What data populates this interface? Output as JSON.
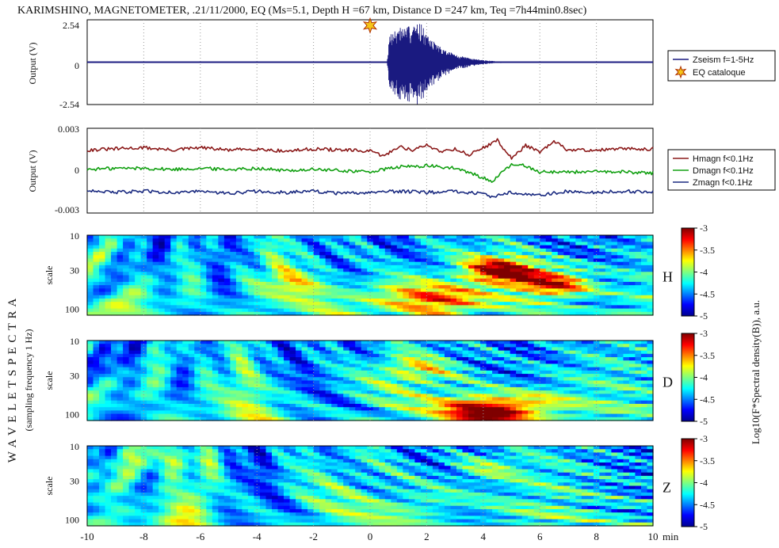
{
  "chart_data": [
    {
      "type": "line",
      "title": "KARIMSHINO, MAGNETOMETER, .21/11/2000,  EQ (Ms=5.1, Depth H =67 km, Distance D =247 km, Teq =7h44min0.8sec)",
      "ylabel": "Output (V)",
      "xlim": [
        -10,
        10
      ],
      "ylim": [
        -2.54,
        2.54
      ],
      "yticks": [
        "2.54",
        "0",
        "-2.54"
      ],
      "series": [
        {
          "name": "Zseism f=1-5Hz",
          "color": "#1a1a80",
          "x": [
            -10,
            0.6,
            0.7,
            1.0,
            1.5,
            1.8,
            2.0,
            2.5,
            3.0,
            3.5,
            4.0,
            4.5,
            10
          ],
          "amplitude": [
            0,
            0,
            1.8,
            2.1,
            2.2,
            2.4,
            1.6,
            0.9,
            0.45,
            0.25,
            0.12,
            0.05,
            0
          ]
        }
      ],
      "markers": [
        {
          "name": "EQ cataloque",
          "x": 0,
          "y": 2.2,
          "color": "#f5c518"
        }
      ],
      "legend": "right"
    },
    {
      "type": "line",
      "ylabel": "Output (V)",
      "xlim": [
        -10,
        10
      ],
      "ylim": [
        -0.0035,
        0.0035
      ],
      "yticks": [
        "0.003",
        "0",
        "-0.003"
      ],
      "series": [
        {
          "name": "Hmagn f<0.1Hz",
          "color": "#8b1a1a",
          "baseline": 0.0017,
          "x": [
            -10,
            -9,
            -8,
            -7,
            -6,
            -5,
            -4,
            -3,
            -2,
            -1,
            0,
            0.5,
            1,
            1.5,
            2,
            2.5,
            3,
            3.5,
            4,
            4.5,
            5,
            5.5,
            6,
            6.5,
            7,
            8,
            9,
            10
          ],
          "y": [
            0.0017,
            0.0018,
            0.0019,
            0.0017,
            0.0019,
            0.0017,
            0.0018,
            0.0016,
            0.0018,
            0.0017,
            0.0016,
            0.0012,
            0.002,
            0.0017,
            0.0021,
            0.0016,
            0.0018,
            0.0013,
            0.0019,
            0.0025,
            0.001,
            0.0021,
            0.0015,
            0.0024,
            0.0017,
            0.0017,
            0.0018,
            0.0018
          ]
        },
        {
          "name": "Dmagn f<0.1Hz",
          "color": "#12a012",
          "baseline": 0.0,
          "x": [
            -10,
            -9,
            -8,
            -7,
            -6,
            -5,
            -4,
            -3,
            -2,
            -1,
            0,
            1,
            2,
            3,
            3.8,
            4.3,
            5,
            5.5,
            6,
            7,
            8,
            9,
            10
          ],
          "y": [
            0.0001,
            0.0002,
            0.0002,
            0.0001,
            0.0002,
            0.0001,
            0.0002,
            0.0,
            0.0001,
            0.0,
            -0.0001,
            0.0003,
            0.0004,
            0.0002,
            -0.0004,
            -0.0009,
            0.0005,
            0.0004,
            -0.0001,
            -0.0001,
            -0.0001,
            -0.0001,
            -0.0002
          ]
        },
        {
          "name": "Zmagn f<0.1Hz",
          "color": "#1a2a80",
          "baseline": -0.0018,
          "x": [
            -10,
            -9,
            -8,
            -7,
            -6,
            -5,
            -4,
            -3,
            -2,
            -1,
            0,
            1,
            2,
            3,
            4,
            4.3,
            5,
            6,
            7,
            8,
            9,
            10
          ],
          "y": [
            -0.0016,
            -0.0018,
            -0.0017,
            -0.0018,
            -0.0017,
            -0.0019,
            -0.0017,
            -0.0018,
            -0.0017,
            -0.0019,
            -0.0018,
            -0.0017,
            -0.0018,
            -0.0017,
            -0.0019,
            -0.0022,
            -0.0018,
            -0.002,
            -0.0017,
            -0.0018,
            -0.0017,
            -0.0018
          ]
        }
      ],
      "legend": "right"
    },
    {
      "type": "heatmap",
      "panel": "H",
      "ylabel": "scale",
      "xlim": [
        -10,
        10
      ],
      "yticks": [
        "10",
        "30",
        "100"
      ],
      "colorbar": {
        "range": [
          -5,
          -3
        ],
        "ticks": [
          "-3",
          "-3.5",
          "-4",
          "-4.5",
          "-5"
        ]
      },
      "hotspots": [
        {
          "t": 4.7,
          "scale": 30,
          "level": -3.1
        },
        {
          "t": 6.5,
          "scale": 45,
          "level": -3.3
        },
        {
          "t": 2.5,
          "scale": 80,
          "level": -3.8
        },
        {
          "t": 1.5,
          "scale": 75,
          "level": -3.9
        },
        {
          "t": 0.5,
          "scale": 55,
          "level": -4.0
        },
        {
          "t": -3,
          "scale": 45,
          "level": -4.1
        }
      ]
    },
    {
      "type": "heatmap",
      "panel": "D",
      "ylabel": "scale",
      "xlim": [
        -10,
        10
      ],
      "yticks": [
        "10",
        "30",
        "100"
      ],
      "colorbar": {
        "range": [
          -5,
          -3
        ],
        "ticks": [
          "-3",
          "-3.5",
          "-4",
          "-4.5",
          "-5"
        ]
      },
      "hotspots": [
        {
          "t": 4.5,
          "scale": 95,
          "level": -3.3
        },
        {
          "t": 3.5,
          "scale": 80,
          "level": -3.8
        },
        {
          "t": 1.5,
          "scale": 25,
          "level": -3.9
        },
        {
          "t": 6,
          "scale": 70,
          "level": -4.0
        }
      ]
    },
    {
      "type": "heatmap",
      "panel": "Z",
      "ylabel": "scale",
      "xlim": [
        -10,
        10
      ],
      "yticks": [
        "10",
        "30",
        "100"
      ],
      "colorbar": {
        "range": [
          -5,
          -3
        ],
        "ticks": [
          "-3",
          "-3.5",
          "-4",
          "-4.5",
          "-5"
        ]
      },
      "hotspots": [
        {
          "t": -7,
          "scale": 15,
          "level": -4.0
        },
        {
          "t": 4,
          "scale": 20,
          "level": -4.0
        },
        {
          "t": 2,
          "scale": 60,
          "level": -4.1
        }
      ]
    }
  ],
  "xaxis": {
    "ticks": [
      "-10",
      "-8",
      "-6",
      "-4",
      "-2",
      "0",
      "2",
      "4",
      "6",
      "8",
      "10"
    ],
    "unit": "min"
  },
  "side_labels": {
    "left_title": "W A V E L E T   S P E C T R A",
    "left_subtitle": "(sampling frequency 1 Hz)",
    "colorbar_label": "Log10(F*Spectral density(B)), a.u."
  }
}
